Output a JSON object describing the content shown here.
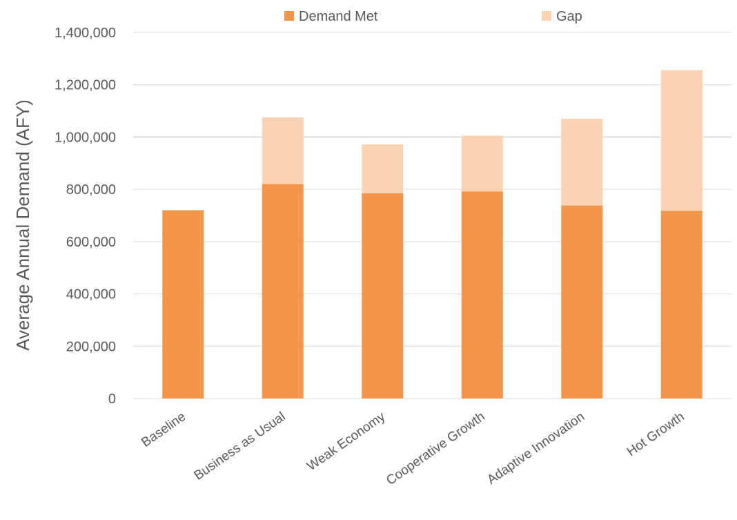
{
  "chart_data": {
    "type": "bar",
    "stacked": true,
    "title": "",
    "xlabel": "",
    "ylabel": "Average Annual Demand (AFY)",
    "ylim": [
      0,
      1400000
    ],
    "yticks": [
      0,
      200000,
      400000,
      600000,
      800000,
      1000000,
      1200000,
      1400000
    ],
    "ytick_labels": [
      "0",
      "200,000",
      "400,000",
      "600,000",
      "800,000",
      "1,000,000",
      "1,200,000",
      "1,400,000"
    ],
    "categories": [
      "Baseline",
      "Business as Usual",
      "Weak Economy",
      "Cooperative Growth",
      "Adaptive Innovation",
      "Hot Growth"
    ],
    "series": [
      {
        "name": "Demand Met",
        "color": "#F4964A",
        "values": [
          720000,
          820000,
          785000,
          792000,
          738000,
          718000
        ]
      },
      {
        "name": "Gap",
        "color": "#FBD3B2",
        "values": [
          0,
          255000,
          187000,
          213000,
          332000,
          538000
        ]
      }
    ],
    "grid": true,
    "legend_position": "top"
  }
}
